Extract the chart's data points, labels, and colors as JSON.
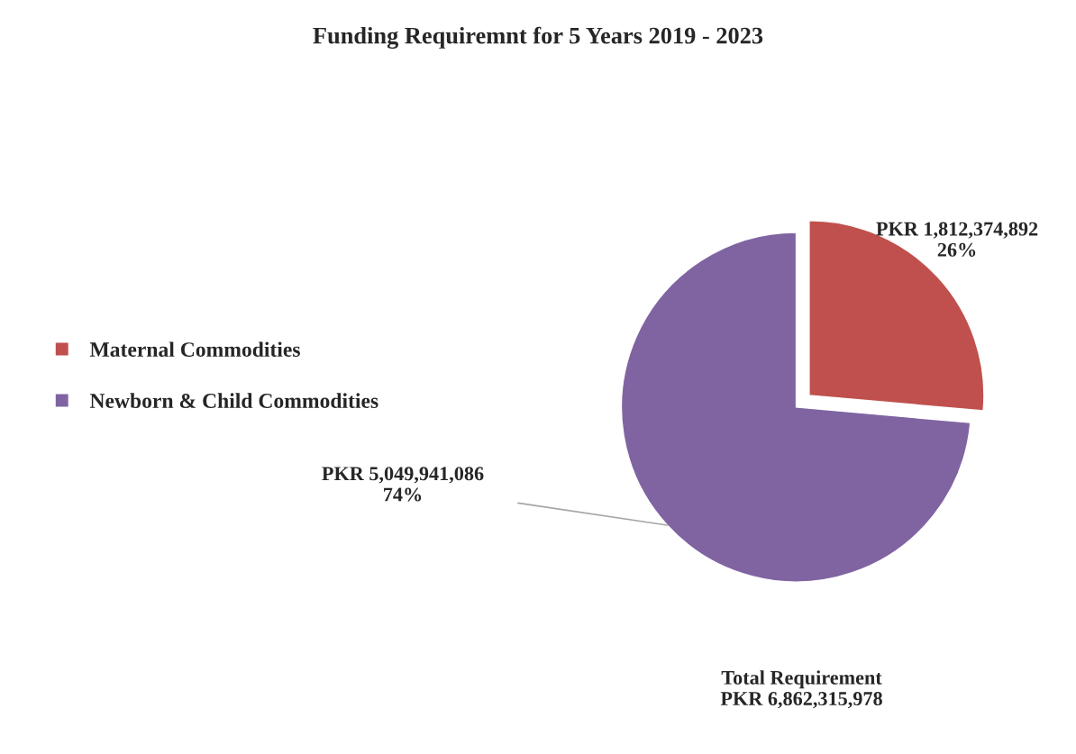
{
  "chart_data": {
    "type": "pie",
    "title": "Funding Requiremnt for 5 Years 2019 - 2023",
    "categories": [
      "Maternal Commodities",
      "Newborn & Child Commodities"
    ],
    "values": [
      1812374892,
      5049941086
    ],
    "colors": [
      "#c0504d",
      "#8064a2"
    ],
    "value_labels": [
      "PKR 1,812,374,892\n26%",
      "PKR 5,049,941,086\n74%"
    ],
    "legend": "left",
    "annotations": [
      "Total Requirement\nPKR 6,862,315,978"
    ]
  }
}
